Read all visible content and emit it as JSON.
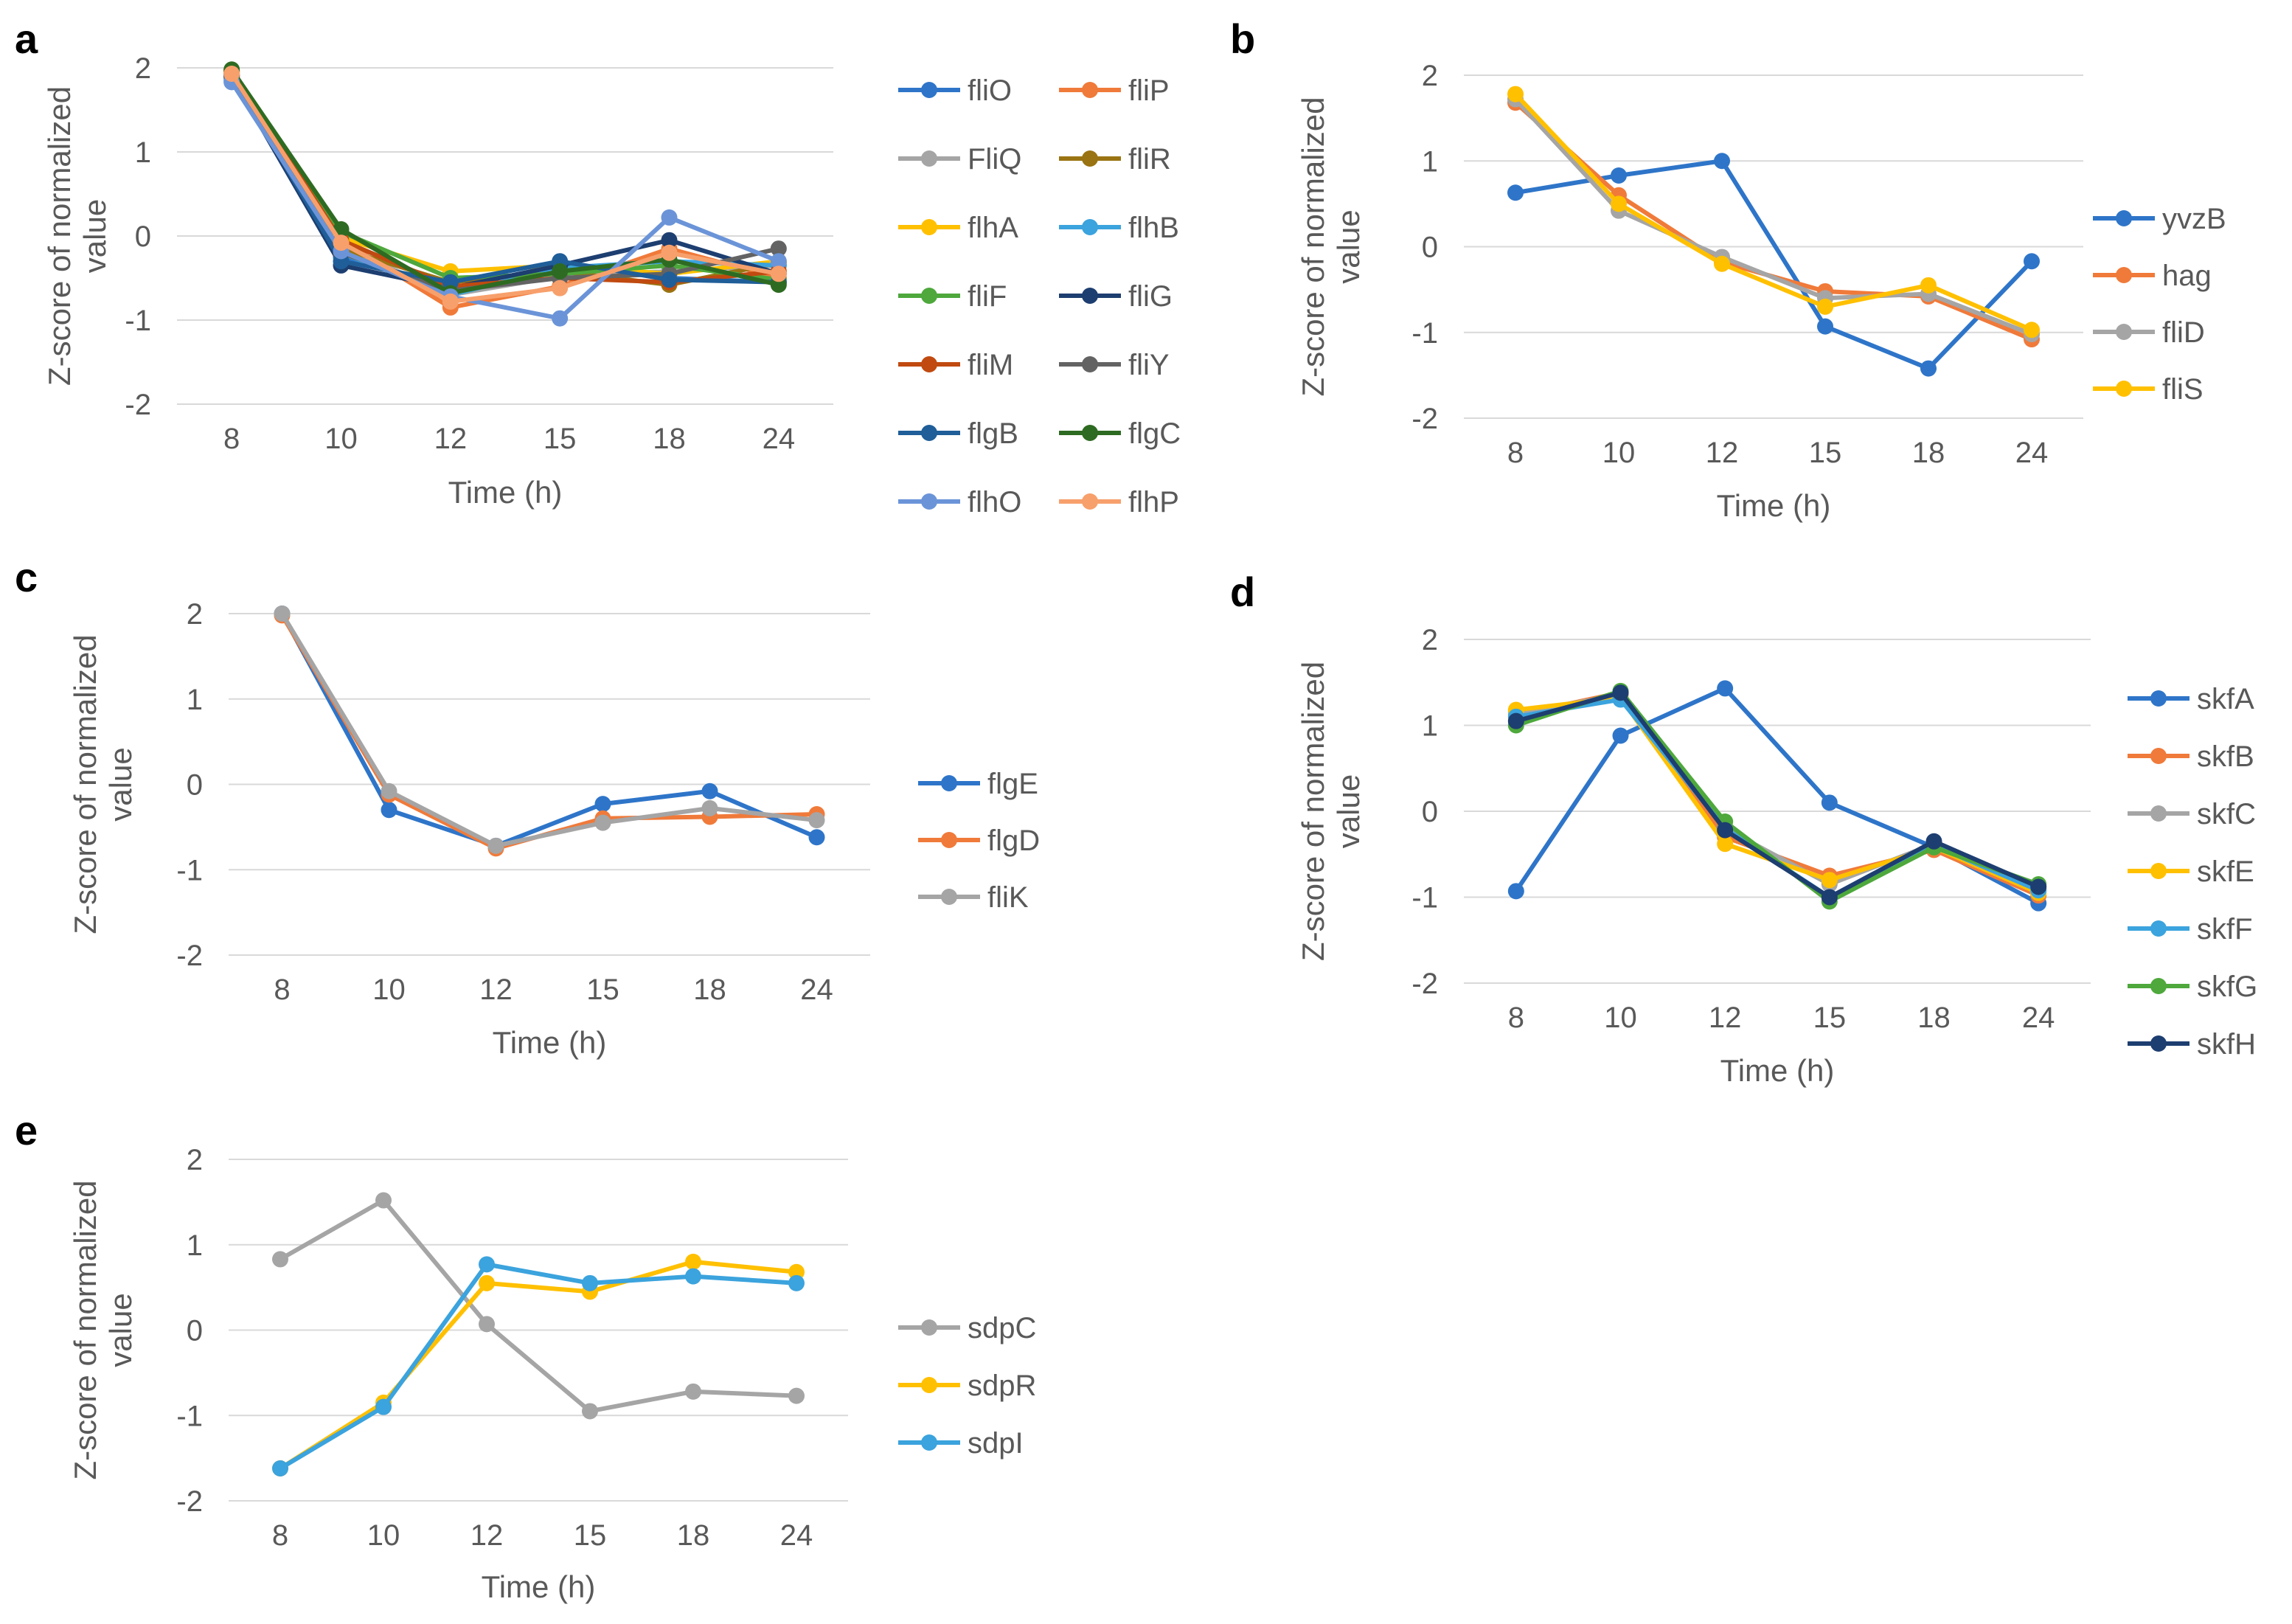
{
  "figure": {
    "colors": {
      "blue": "#2e75c9",
      "orange": "#f07a3a",
      "gray": "#a5a5a5",
      "yellow": "#ffc000",
      "lightblue": "#3ba3dd",
      "green": "#4ea83c",
      "darknavy": "#1d3e70",
      "rust": "#c04a10",
      "darkgray": "#636363",
      "teal": "#1f5e98",
      "darkgreen": "#2e6b22",
      "periwinkle": "#6b94d8",
      "peach": "#f7a06c",
      "olive": "#9a7412"
    }
  },
  "chart_data": [
    {
      "panel": "a",
      "type": "line",
      "categories": [
        "8",
        "10",
        "12",
        "15",
        "18",
        "24"
      ],
      "xlabel": "Time (h)",
      "ylabel_line1": "Z-score of normalized",
      "ylabel_line2": "value",
      "ylim": [
        -2,
        2
      ],
      "yticks": [
        "2",
        "1",
        "0",
        "-1",
        "-2"
      ],
      "legend_columns": 2,
      "series": [
        {
          "name": "fliO",
          "color": "#2e75c9",
          "values": [
            1.9,
            -0.25,
            -0.62,
            -0.35,
            -0.5,
            -0.55
          ]
        },
        {
          "name": "fliP",
          "color": "#f07a3a",
          "values": [
            1.95,
            -0.05,
            -0.85,
            -0.6,
            -0.15,
            -0.5
          ]
        },
        {
          "name": "FliQ",
          "color": "#a5a5a5",
          "values": [
            1.88,
            -0.12,
            -0.7,
            -0.48,
            -0.42,
            -0.35
          ]
        },
        {
          "name": "fliR",
          "color": "#9a7412",
          "values": [
            1.92,
            -0.15,
            -0.55,
            -0.42,
            -0.58,
            -0.32
          ]
        },
        {
          "name": "flhA",
          "color": "#ffc000",
          "values": [
            1.95,
            -0.02,
            -0.42,
            -0.35,
            -0.45,
            -0.3
          ]
        },
        {
          "name": "flhB",
          "color": "#3ba3dd",
          "values": [
            1.85,
            -0.2,
            -0.7,
            -0.38,
            -0.3,
            -0.35
          ]
        },
        {
          "name": "fliF",
          "color": "#4ea83c",
          "values": [
            1.97,
            0.05,
            -0.5,
            -0.45,
            -0.35,
            -0.52
          ]
        },
        {
          "name": "fliG",
          "color": "#1d3e70",
          "values": [
            1.9,
            -0.35,
            -0.62,
            -0.35,
            -0.05,
            -0.45
          ]
        },
        {
          "name": "fliM",
          "color": "#c04a10",
          "values": [
            1.96,
            -0.05,
            -0.6,
            -0.5,
            -0.55,
            -0.42
          ]
        },
        {
          "name": "fliY",
          "color": "#636363",
          "values": [
            1.9,
            -0.2,
            -0.65,
            -0.5,
            -0.45,
            -0.15
          ]
        },
        {
          "name": "flgB",
          "color": "#1f5e98",
          "values": [
            1.92,
            -0.3,
            -0.55,
            -0.3,
            -0.52,
            -0.55
          ]
        },
        {
          "name": "flgC",
          "color": "#2e6b22",
          "values": [
            1.98,
            0.08,
            -0.68,
            -0.42,
            -0.28,
            -0.58
          ]
        },
        {
          "name": "flhO",
          "color": "#6b94d8",
          "values": [
            1.83,
            -0.18,
            -0.72,
            -0.98,
            0.22,
            -0.3
          ]
        },
        {
          "name": "flhP",
          "color": "#f7a06c",
          "values": [
            1.93,
            -0.08,
            -0.78,
            -0.62,
            -0.2,
            -0.45
          ]
        }
      ]
    },
    {
      "panel": "b",
      "type": "line",
      "categories": [
        "8",
        "10",
        "12",
        "15",
        "18",
        "24"
      ],
      "xlabel": "Time (h)",
      "ylabel_line1": "Z-score of normalized",
      "ylabel_line2": "value",
      "ylim": [
        -2,
        2
      ],
      "yticks": [
        "2",
        "1",
        "0",
        "-1",
        "-2"
      ],
      "legend_columns": 1,
      "series": [
        {
          "name": "yvzB",
          "color": "#2e75c9",
          "values": [
            0.63,
            0.83,
            1.0,
            -0.93,
            -1.42,
            -0.17
          ]
        },
        {
          "name": "hag",
          "color": "#f07a3a",
          "values": [
            1.68,
            0.6,
            -0.18,
            -0.52,
            -0.58,
            -1.08
          ]
        },
        {
          "name": "fliD",
          "color": "#a5a5a5",
          "values": [
            1.72,
            0.42,
            -0.12,
            -0.6,
            -0.55,
            -1.02
          ]
        },
        {
          "name": "fliS",
          "color": "#ffc000",
          "values": [
            1.78,
            0.5,
            -0.2,
            -0.7,
            -0.45,
            -0.97
          ]
        }
      ]
    },
    {
      "panel": "c",
      "type": "line",
      "categories": [
        "8",
        "10",
        "12",
        "15",
        "18",
        "24"
      ],
      "xlabel": "Time (h)",
      "ylabel_line1": "Z-score of normalized",
      "ylabel_line2": "value",
      "ylim": [
        -2,
        2
      ],
      "yticks": [
        "2",
        "1",
        "0",
        "-1",
        "-2"
      ],
      "legend_columns": 1,
      "series": [
        {
          "name": "flgE",
          "color": "#2e75c9",
          "values": [
            2.0,
            -0.3,
            -0.72,
            -0.23,
            -0.08,
            -0.62
          ]
        },
        {
          "name": "flgD",
          "color": "#f07a3a",
          "values": [
            1.98,
            -0.12,
            -0.75,
            -0.4,
            -0.38,
            -0.35
          ]
        },
        {
          "name": "fliK",
          "color": "#a5a5a5",
          "values": [
            2.0,
            -0.08,
            -0.72,
            -0.45,
            -0.28,
            -0.42
          ]
        }
      ]
    },
    {
      "panel": "d",
      "type": "line",
      "categories": [
        "8",
        "10",
        "12",
        "15",
        "18",
        "24"
      ],
      "xlabel": "Time (h)",
      "ylabel_line1": "Z-score of normalized",
      "ylabel_line2": "value",
      "ylim": [
        -2,
        2
      ],
      "yticks": [
        "2",
        "1",
        "0",
        "-1",
        "-2"
      ],
      "legend_columns": 1,
      "series": [
        {
          "name": "skfA",
          "color": "#2e75c9",
          "values": [
            -0.93,
            0.88,
            1.43,
            0.1,
            -0.42,
            -1.07
          ]
        },
        {
          "name": "skfB",
          "color": "#f07a3a",
          "values": [
            1.12,
            1.38,
            -0.3,
            -0.75,
            -0.45,
            -0.98
          ]
        },
        {
          "name": "skfC",
          "color": "#a5a5a5",
          "values": [
            1.15,
            1.35,
            -0.2,
            -0.85,
            -0.38,
            -0.9
          ]
        },
        {
          "name": "skfE",
          "color": "#ffc000",
          "values": [
            1.18,
            1.32,
            -0.38,
            -0.8,
            -0.42,
            -0.95
          ]
        },
        {
          "name": "skfF",
          "color": "#3ba3dd",
          "values": [
            1.1,
            1.3,
            -0.2,
            -1.0,
            -0.4,
            -0.92
          ]
        },
        {
          "name": "skfG",
          "color": "#4ea83c",
          "values": [
            1.0,
            1.4,
            -0.12,
            -1.05,
            -0.42,
            -0.85
          ]
        },
        {
          "name": "skfH",
          "color": "#1d3e70",
          "values": [
            1.05,
            1.38,
            -0.22,
            -1.0,
            -0.35,
            -0.88
          ]
        }
      ]
    },
    {
      "panel": "e",
      "type": "line",
      "categories": [
        "8",
        "10",
        "12",
        "15",
        "18",
        "24"
      ],
      "xlabel": "Time (h)",
      "ylabel_line1": "Z-score of normalized",
      "ylabel_line2": "value",
      "ylim": [
        -2,
        2
      ],
      "yticks": [
        "2",
        "1",
        "0",
        "-1",
        "-2"
      ],
      "legend_columns": 1,
      "series": [
        {
          "name": "sdpC",
          "color": "#a5a5a5",
          "values": [
            0.83,
            1.52,
            0.07,
            -0.95,
            -0.72,
            -0.77
          ]
        },
        {
          "name": "sdpR",
          "color": "#ffc000",
          "values": [
            -1.62,
            -0.85,
            0.55,
            0.45,
            0.8,
            0.68
          ]
        },
        {
          "name": "sdpI",
          "color": "#3ba3dd",
          "values": [
            -1.62,
            -0.9,
            0.77,
            0.55,
            0.63,
            0.55
          ]
        }
      ]
    }
  ]
}
